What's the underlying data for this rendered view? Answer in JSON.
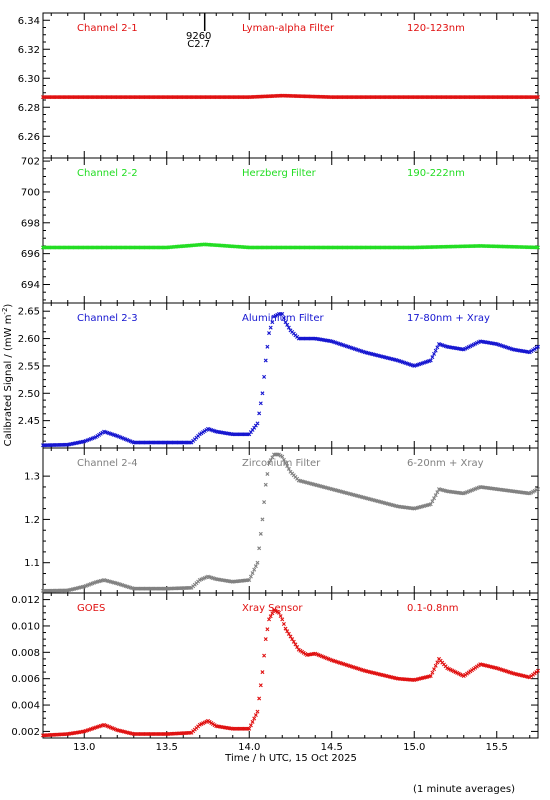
{
  "figure": {
    "xlabel": "Time / h UTC, 15 Oct 2025",
    "ylabel": "Calibrated Signal / (mW m",
    "ylabel_sup": "-2",
    "ylabel_close": ")",
    "footnote": "(1 minute averages)",
    "marker_annotation": {
      "line1": "9260",
      "line2": "C2.7",
      "x": 13.73
    }
  },
  "chart_data": [
    {
      "type": "scatter",
      "channel": "Channel 2-1",
      "filter": "Lyman-alpha Filter",
      "band": "120-123nm",
      "color": "#e01010",
      "xlim": [
        12.75,
        15.75
      ],
      "ylim": [
        6.245,
        6.345
      ],
      "yticks": [
        6.26,
        6.28,
        6.3,
        6.32,
        6.34
      ],
      "xticks": [
        13.0,
        13.5,
        14.0,
        14.5,
        15.0,
        15.5
      ],
      "series": [
        {
          "x": [
            12.75,
            13.0,
            13.5,
            14.0,
            14.2,
            14.5,
            15.0,
            15.5,
            15.75
          ],
          "y": [
            6.287,
            6.287,
            6.287,
            6.287,
            6.288,
            6.287,
            6.287,
            6.287,
            6.287
          ]
        }
      ]
    },
    {
      "type": "scatter",
      "channel": "Channel 2-2",
      "filter": "Herzberg Filter",
      "band": "190-222nm",
      "color": "#22dd22",
      "xlim": [
        12.75,
        15.75
      ],
      "ylim": [
        692.8,
        702.2
      ],
      "yticks": [
        694,
        696,
        698,
        700,
        702
      ],
      "xticks": [
        13.0,
        13.5,
        14.0,
        14.5,
        15.0,
        15.5
      ],
      "series": [
        {
          "x": [
            12.75,
            13.0,
            13.5,
            13.73,
            14.0,
            14.5,
            15.0,
            15.4,
            15.75
          ],
          "y": [
            696.4,
            696.4,
            696.4,
            696.6,
            696.4,
            696.4,
            696.4,
            696.5,
            696.4
          ]
        }
      ]
    },
    {
      "type": "scatter",
      "channel": "Channel 2-3",
      "filter": "Aluminium Filter",
      "band": "17-80nm + Xray",
      "color": "#1515d0",
      "xlim": [
        12.75,
        15.75
      ],
      "ylim": [
        2.4,
        2.665
      ],
      "yticks": [
        2.45,
        2.5,
        2.55,
        2.6,
        2.65
      ],
      "xticks": [
        13.0,
        13.5,
        14.0,
        14.5,
        15.0,
        15.5
      ],
      "series": [
        {
          "x": [
            12.75,
            12.9,
            13.0,
            13.07,
            13.12,
            13.2,
            13.3,
            13.5,
            13.65,
            13.7,
            13.75,
            13.8,
            13.9,
            14.0,
            14.05,
            14.08,
            14.1,
            14.12,
            14.15,
            14.18,
            14.2,
            14.22,
            14.25,
            14.3,
            14.4,
            14.5,
            14.7,
            14.9,
            15.0,
            15.1,
            15.15,
            15.2,
            15.3,
            15.4,
            15.5,
            15.6,
            15.7,
            15.75
          ],
          "y": [
            2.405,
            2.406,
            2.412,
            2.42,
            2.43,
            2.422,
            2.41,
            2.41,
            2.41,
            2.425,
            2.435,
            2.43,
            2.425,
            2.425,
            2.445,
            2.5,
            2.56,
            2.61,
            2.64,
            2.645,
            2.645,
            2.63,
            2.615,
            2.6,
            2.6,
            2.595,
            2.575,
            2.56,
            2.55,
            2.56,
            2.59,
            2.585,
            2.58,
            2.595,
            2.59,
            2.58,
            2.575,
            2.585
          ]
        }
      ]
    },
    {
      "type": "scatter",
      "channel": "Channel 2-4",
      "filter": "Zirconium Filter",
      "band": "6-20nm + Xray",
      "color": "#808080",
      "xlim": [
        12.75,
        15.75
      ],
      "ylim": [
        1.03,
        1.365
      ],
      "yticks": [
        1.1,
        1.2,
        1.3
      ],
      "xticks": [
        13.0,
        13.5,
        14.0,
        14.5,
        15.0,
        15.5
      ],
      "series": [
        {
          "x": [
            12.75,
            12.9,
            13.0,
            13.07,
            13.12,
            13.2,
            13.3,
            13.5,
            13.65,
            13.7,
            13.75,
            13.8,
            13.9,
            14.0,
            14.05,
            14.08,
            14.1,
            14.12,
            14.15,
            14.18,
            14.2,
            14.22,
            14.25,
            14.3,
            14.4,
            14.5,
            14.7,
            14.9,
            15.0,
            15.1,
            15.15,
            15.2,
            15.3,
            15.4,
            15.5,
            15.6,
            15.7,
            15.75
          ],
          "y": [
            1.035,
            1.036,
            1.045,
            1.055,
            1.06,
            1.052,
            1.04,
            1.04,
            1.042,
            1.06,
            1.068,
            1.062,
            1.056,
            1.06,
            1.1,
            1.2,
            1.28,
            1.33,
            1.35,
            1.35,
            1.345,
            1.33,
            1.31,
            1.29,
            1.28,
            1.27,
            1.25,
            1.23,
            1.225,
            1.235,
            1.27,
            1.265,
            1.26,
            1.275,
            1.27,
            1.265,
            1.26,
            1.27
          ]
        }
      ]
    },
    {
      "type": "scatter",
      "channel": "GOES",
      "filter": "Xray Sensor",
      "band": "0.1-0.8nm",
      "color": "#e01010",
      "xlim": [
        12.75,
        15.75
      ],
      "ylim": [
        0.0015,
        0.0125
      ],
      "yticks": [
        0.002,
        0.004,
        0.006,
        0.008,
        0.01,
        0.012
      ],
      "ytick_labels": [
        "0.002",
        "0.004",
        "0.006",
        "0.008",
        "0.010",
        "0.012"
      ],
      "xticks": [
        13.0,
        13.5,
        14.0,
        14.5,
        15.0,
        15.5
      ],
      "xtick_labels": [
        "13.0",
        "13.5",
        "14.0",
        "14.5",
        "15.0",
        "15.5"
      ],
      "series": [
        {
          "x": [
            12.75,
            12.9,
            13.0,
            13.07,
            13.12,
            13.2,
            13.3,
            13.5,
            13.65,
            13.7,
            13.75,
            13.8,
            13.9,
            14.0,
            14.05,
            14.08,
            14.1,
            14.12,
            14.15,
            14.18,
            14.2,
            14.22,
            14.25,
            14.3,
            14.35,
            14.4,
            14.5,
            14.7,
            14.9,
            15.0,
            15.1,
            15.15,
            15.2,
            15.3,
            15.4,
            15.5,
            15.6,
            15.7,
            15.75
          ],
          "y": [
            0.0017,
            0.0018,
            0.002,
            0.0023,
            0.0025,
            0.0021,
            0.0018,
            0.0018,
            0.0019,
            0.0025,
            0.0028,
            0.0024,
            0.0022,
            0.0022,
            0.0035,
            0.0065,
            0.009,
            0.0105,
            0.0112,
            0.011,
            0.0105,
            0.0098,
            0.0092,
            0.0082,
            0.0078,
            0.0079,
            0.0074,
            0.0066,
            0.006,
            0.0059,
            0.0062,
            0.0075,
            0.0068,
            0.0062,
            0.0071,
            0.0068,
            0.0064,
            0.0061,
            0.0066
          ]
        }
      ]
    }
  ]
}
